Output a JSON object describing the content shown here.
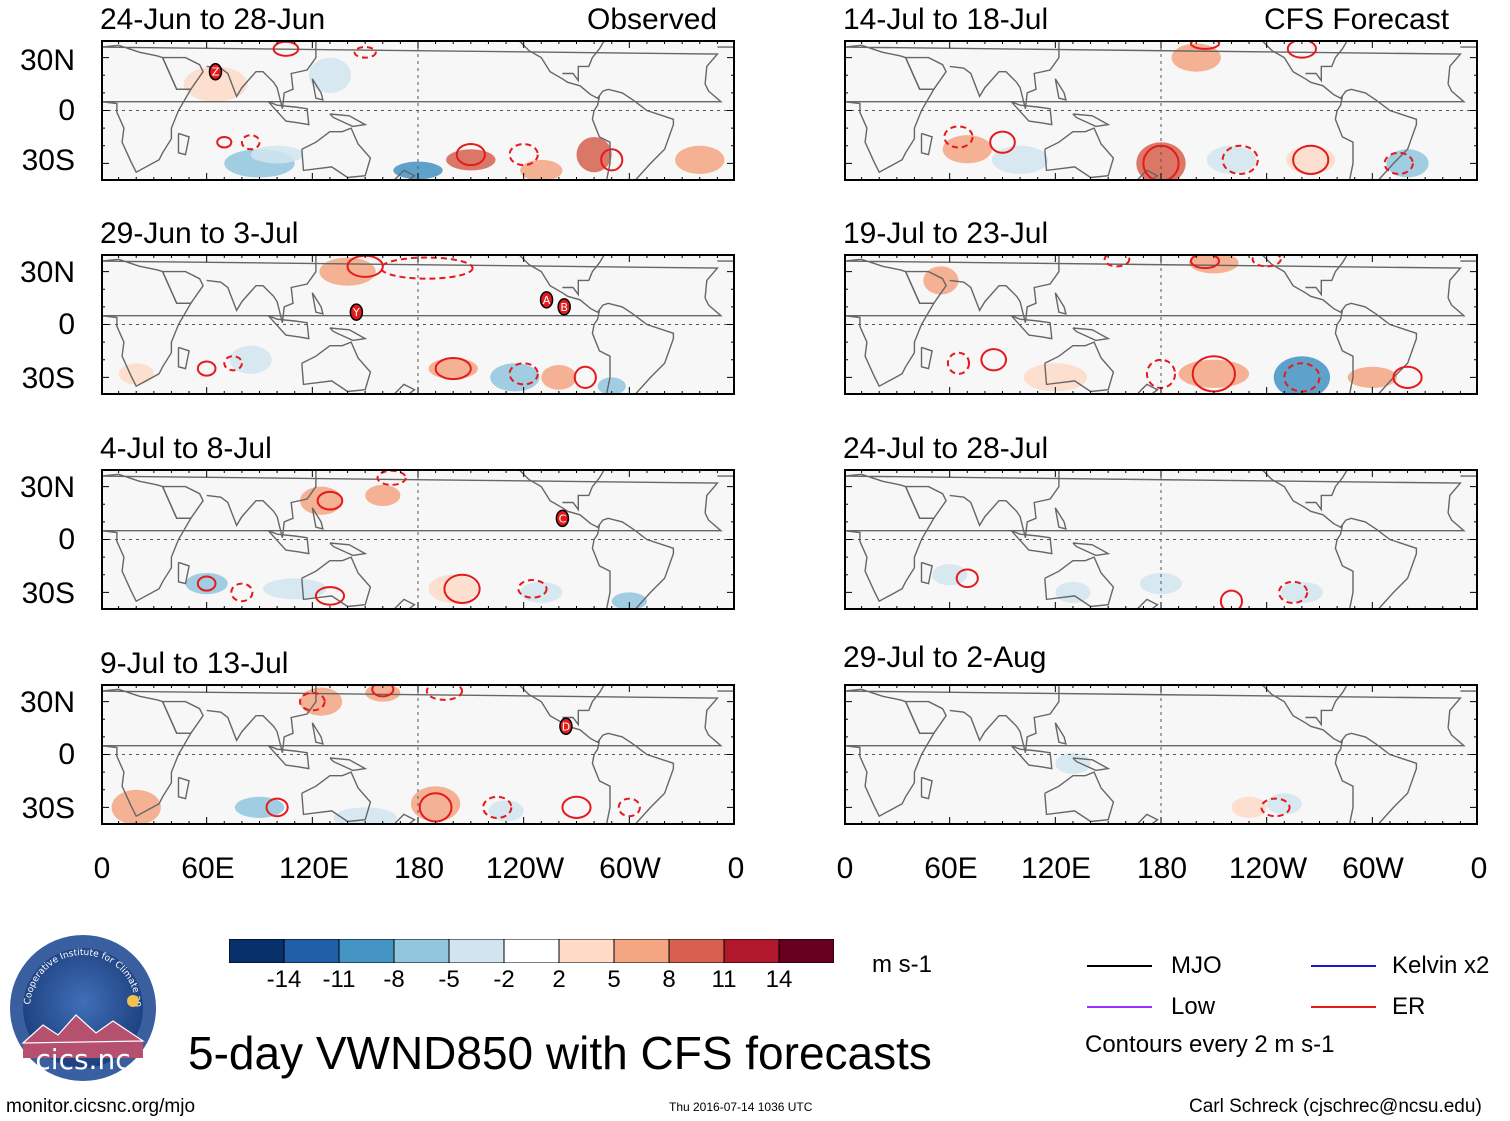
{
  "header": {
    "observed_label": "Observed",
    "forecast_label": "CFS Forecast"
  },
  "panels": {
    "left": [
      {
        "period": "24-Jun to 28-Jun",
        "markers": [
          {
            "letter": "Z",
            "lon": 65,
            "lat": 22
          }
        ]
      },
      {
        "period": "29-Jun to 3-Jul",
        "markers": [
          {
            "letter": "Y",
            "lon": 145,
            "lat": 7
          },
          {
            "letter": "A",
            "lon": 253,
            "lat": 14
          },
          {
            "letter": "B",
            "lon": 263,
            "lat": 10
          }
        ]
      },
      {
        "period": "4-Jul to 8-Jul",
        "markers": [
          {
            "letter": "C",
            "lon": 262,
            "lat": 12
          }
        ]
      },
      {
        "period": "9-Jul to 13-Jul",
        "markers": [
          {
            "letter": "D",
            "lon": 264,
            "lat": 16
          }
        ]
      }
    ],
    "right": [
      {
        "period": "14-Jul to 18-Jul",
        "markers": []
      },
      {
        "period": "19-Jul to 23-Jul",
        "markers": []
      },
      {
        "period": "24-Jul to 28-Jul",
        "markers": []
      },
      {
        "period": "29-Jul to 2-Aug",
        "markers": []
      }
    ]
  },
  "axes": {
    "y_labels": [
      "30N",
      "0",
      "30S"
    ],
    "x_labels": [
      "0",
      "60E",
      "120E",
      "180",
      "120W",
      "60W",
      "0"
    ]
  },
  "colorbar": {
    "colors": [
      "#08306b",
      "#1f5fa8",
      "#4393c3",
      "#92c5de",
      "#d1e5f0",
      "#ffffff",
      "#fddbc7",
      "#f4a582",
      "#d6604d",
      "#b2182b",
      "#67001f"
    ],
    "labels": [
      "-14",
      "-11",
      "-8",
      "-5",
      "-2",
      "2",
      "5",
      "8",
      "11",
      "14"
    ],
    "units": "m s-1"
  },
  "legend": {
    "items": [
      {
        "label": "MJO",
        "color": "#000000"
      },
      {
        "label": "Kelvin x2",
        "color": "#1a1acc"
      },
      {
        "label": "Low",
        "color": "#9b30ff"
      },
      {
        "label": "ER",
        "color": "#e41a1c"
      }
    ],
    "contour_note": "Contours every 2 m s-1"
  },
  "logo": {
    "text": "cics.nc",
    "ring_text": "Cooperative Institute for Climate and Satellites"
  },
  "title": "5-day VWND850 with CFS forecasts",
  "footer": {
    "url": "monitor.cicsnc.org/mjo",
    "timestamp": "Thu 2016-07-14 1036 UTC",
    "author": "Carl Schreck (cjschrec@ncsu.edu)"
  }
}
